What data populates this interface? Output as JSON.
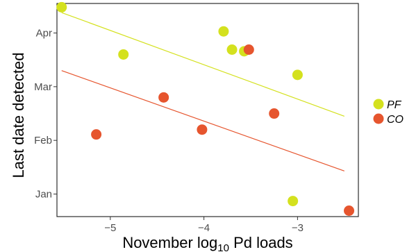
{
  "chart_data": {
    "type": "scatter",
    "title": "",
    "xlabel": {
      "prefix": "November log",
      "subscript": "10",
      "suffix": " Pd loads"
    },
    "ylabel": "Last date detected",
    "xlim": [
      -5.57,
      -2.35
    ],
    "ylim": [
      -0.42,
      3.55
    ],
    "x_ticks": [
      {
        "value": -5,
        "label": "−5"
      },
      {
        "value": -4,
        "label": "−4"
      },
      {
        "value": -3,
        "label": "−3"
      }
    ],
    "y_ticks": [
      {
        "value": 0,
        "label": "Jan"
      },
      {
        "value": 1,
        "label": "Feb"
      },
      {
        "value": 2,
        "label": "Mar"
      },
      {
        "value": 3,
        "label": "Apr"
      }
    ],
    "grid": false,
    "legend_position": "right",
    "series": [
      {
        "name": "PF",
        "color": "#d4e11e",
        "points": [
          {
            "x": -5.52,
            "y": 3.48
          },
          {
            "x": -4.86,
            "y": 2.6
          },
          {
            "x": -3.79,
            "y": 3.03
          },
          {
            "x": -3.7,
            "y": 2.69
          },
          {
            "x": -3.57,
            "y": 2.66
          },
          {
            "x": -3.0,
            "y": 2.22
          },
          {
            "x": -3.05,
            "y": -0.13
          }
        ],
        "trend": {
          "x": [
            -5.52,
            -2.5
          ],
          "y": [
            3.38,
            1.45
          ]
        }
      },
      {
        "name": "CO",
        "color": "#e6552e",
        "points": [
          {
            "x": -5.15,
            "y": 1.11
          },
          {
            "x": -4.43,
            "y": 1.8
          },
          {
            "x": -4.02,
            "y": 1.2
          },
          {
            "x": -3.52,
            "y": 2.69
          },
          {
            "x": -3.25,
            "y": 1.5
          },
          {
            "x": -2.45,
            "y": -0.31
          }
        ],
        "trend": {
          "x": [
            -5.52,
            -2.5
          ],
          "y": [
            2.3,
            0.43
          ]
        }
      }
    ]
  }
}
